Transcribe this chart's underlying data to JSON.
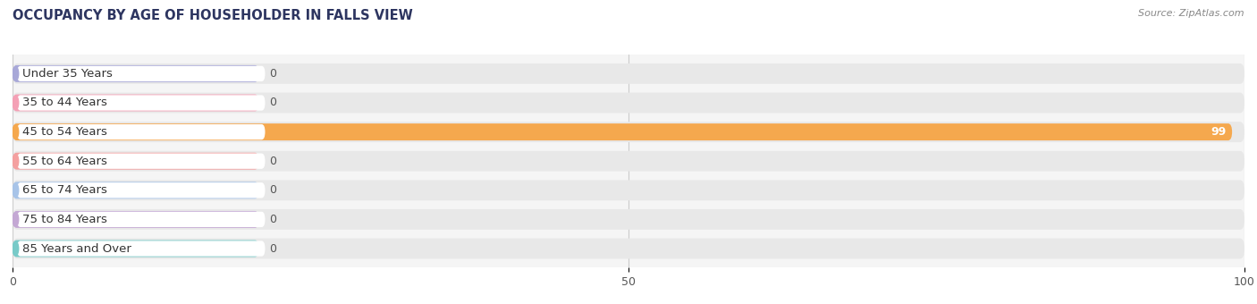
{
  "title": "OCCUPANCY BY AGE OF HOUSEHOLDER IN FALLS VIEW",
  "source": "Source: ZipAtlas.com",
  "categories": [
    "Under 35 Years",
    "35 to 44 Years",
    "45 to 54 Years",
    "55 to 64 Years",
    "65 to 74 Years",
    "75 to 84 Years",
    "85 Years and Over"
  ],
  "values": [
    0,
    0,
    99,
    0,
    0,
    0,
    0
  ],
  "bar_colors": [
    "#a8a8d8",
    "#f4a0b5",
    "#f5a84e",
    "#f4a0a0",
    "#a8c4e8",
    "#c4a8d4",
    "#78cac8"
  ],
  "label_dot_colors": [
    "#a8a8d8",
    "#f4a0b5",
    "#f5a84e",
    "#f4a0a0",
    "#a8c4e8",
    "#c4a8d4",
    "#78cac8"
  ],
  "row_bg_color": "#e8e8e8",
  "bg_color": "#f5f5f5",
  "xlim": [
    0,
    100
  ],
  "xticks": [
    0,
    50,
    100
  ],
  "figsize": [
    14.06,
    3.4
  ],
  "dpi": 100,
  "title_fontsize": 10.5,
  "label_fontsize": 9.5,
  "value_fontsize": 9
}
